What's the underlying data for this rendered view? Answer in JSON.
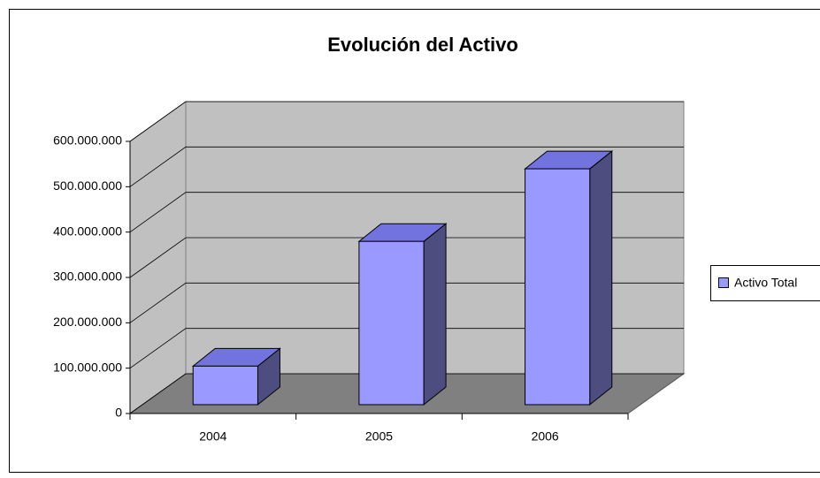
{
  "chart_data": {
    "type": "bar3d",
    "title": "Evolución del Activo",
    "categories": [
      "2004",
      "2005",
      "2006"
    ],
    "series": [
      {
        "name": "Activo Total",
        "color": "#9999ff",
        "values": [
          85000000,
          360000000,
          520000000
        ]
      }
    ],
    "ylim": [
      0,
      600000000
    ],
    "yticks": [
      0,
      {
        "value": 100000000,
        "label": "100.000.000"
      },
      {
        "value": 200000000,
        "label": "200.000.000"
      },
      {
        "value": 300000000,
        "label": "300.000.000"
      },
      {
        "value": 400000000,
        "label": "400.000.000"
      },
      {
        "value": 500000000,
        "label": "500.000.000"
      },
      {
        "value": 600000000,
        "label": "600.000.000"
      }
    ],
    "grid": true,
    "legend": "right"
  }
}
